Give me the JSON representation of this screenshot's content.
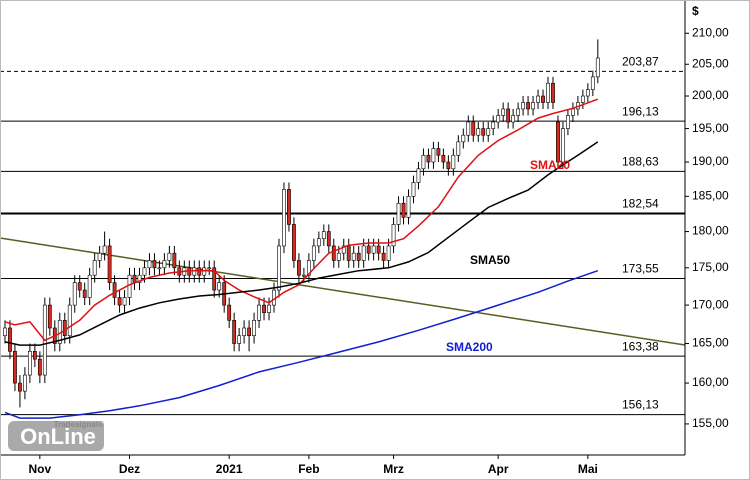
{
  "chart_data": {
    "type": "candlestick",
    "ylabel": "$",
    "log": true,
    "ylim": [
      151.3,
      215.5
    ],
    "yticks": [
      {
        "value": 155,
        "label": "155,00"
      },
      {
        "value": 160,
        "label": "160,00"
      },
      {
        "value": 165,
        "label": "165,00"
      },
      {
        "value": 170,
        "label": "170,00"
      },
      {
        "value": 175,
        "label": "175,00"
      },
      {
        "value": 180,
        "label": "180,00"
      },
      {
        "value": 185,
        "label": "185,00"
      },
      {
        "value": 190,
        "label": "190,00"
      },
      {
        "value": 195,
        "label": "195,00"
      },
      {
        "value": 200,
        "label": "200,00"
      },
      {
        "value": 205,
        "label": "205,00"
      },
      {
        "value": 210,
        "label": "210,00"
      }
    ],
    "xlim": [
      -1,
      136.5
    ],
    "xticks": [
      {
        "value": 7,
        "label": "Nov"
      },
      {
        "value": 25,
        "label": "Dez"
      },
      {
        "value": 45,
        "label": "2021"
      },
      {
        "value": 61,
        "label": "Feb"
      },
      {
        "value": 78,
        "label": "Mrz"
      },
      {
        "value": 99,
        "label": "Apr"
      },
      {
        "value": 117,
        "label": "Mai"
      }
    ],
    "up_color": "#ffffff",
    "down_color": "#d42a20",
    "open": [
      166,
      167,
      164,
      160,
      159,
      161,
      164,
      163,
      161,
      170,
      167,
      165,
      168,
      166,
      170,
      173,
      172,
      171,
      174,
      176,
      177,
      178,
      173,
      171,
      170,
      171,
      174,
      173,
      174,
      175,
      176,
      175,
      175,
      176,
      177,
      175,
      174,
      175,
      174,
      175,
      174,
      175,
      175,
      172,
      173,
      170,
      168,
      165,
      166,
      167,
      166,
      168,
      170,
      169,
      170,
      172,
      178,
      186,
      181,
      176,
      174,
      174,
      176,
      178,
      179,
      180,
      178,
      176,
      177,
      178,
      176,
      177,
      176,
      178,
      177,
      178,
      177,
      176,
      178,
      181,
      184,
      182,
      185,
      187,
      189,
      191,
      190,
      192,
      191,
      190,
      189,
      191,
      193,
      194,
      196,
      194,
      195,
      194,
      195,
      196,
      197,
      198,
      196,
      197,
      198,
      199,
      198,
      199,
      200,
      199,
      202,
      196,
      190,
      195,
      197,
      198,
      199,
      200,
      201,
      203
    ],
    "high": [
      168,
      168,
      165,
      161,
      162,
      165,
      165,
      164,
      171,
      171,
      168,
      169,
      169,
      171,
      174,
      174,
      173,
      175,
      177,
      178,
      180,
      179,
      174,
      172,
      172,
      175,
      175,
      175,
      176,
      177,
      177,
      176,
      177,
      178,
      178,
      176,
      176,
      176,
      176,
      176,
      176,
      176,
      176,
      174,
      174,
      171,
      169,
      167,
      168,
      168,
      169,
      171,
      171,
      171,
      173,
      179,
      187,
      187,
      182,
      177,
      175,
      177,
      179,
      180,
      181,
      181,
      179,
      178,
      179,
      179,
      178,
      178,
      179,
      179,
      179,
      179,
      178,
      179,
      182,
      185,
      185,
      186,
      188,
      190,
      192,
      192,
      193,
      193,
      192,
      191,
      192,
      194,
      195,
      197,
      197,
      196,
      196,
      196,
      197,
      198,
      199,
      199,
      198,
      199,
      200,
      200,
      200,
      201,
      201,
      203,
      203,
      197,
      196,
      198,
      199,
      200,
      201,
      202,
      204,
      209
    ],
    "low": [
      165,
      163,
      159,
      157,
      158,
      160,
      162,
      160,
      160,
      166,
      164,
      164,
      165,
      165,
      169,
      171,
      170,
      170,
      173,
      175,
      176,
      172,
      170,
      169,
      169,
      170,
      172,
      172,
      173,
      174,
      174,
      174,
      174,
      175,
      174,
      173,
      173,
      173,
      173,
      173,
      173,
      174,
      171,
      171,
      169,
      167,
      164,
      164,
      165,
      164,
      165,
      167,
      168,
      168,
      169,
      171,
      177,
      180,
      175,
      173,
      173,
      173,
      175,
      177,
      178,
      177,
      175,
      175,
      176,
      175,
      175,
      175,
      175,
      176,
      176,
      176,
      175,
      175,
      177,
      180,
      181,
      181,
      184,
      186,
      188,
      189,
      189,
      190,
      189,
      188,
      188,
      190,
      192,
      193,
      193,
      193,
      193,
      193,
      194,
      195,
      196,
      195,
      195,
      196,
      197,
      197,
      197,
      198,
      198,
      198,
      198,
      189,
      189,
      194,
      196,
      197,
      198,
      199,
      200,
      202
    ],
    "close": [
      167,
      164,
      160,
      159,
      161,
      164,
      163,
      161,
      170,
      167,
      165,
      168,
      166,
      170,
      173,
      172,
      171,
      174,
      176,
      177,
      178,
      173,
      171,
      170,
      171,
      174,
      173,
      174,
      175,
      176,
      175,
      175,
      176,
      177,
      175,
      174,
      175,
      174,
      175,
      174,
      175,
      175,
      172,
      173,
      170,
      168,
      165,
      166,
      167,
      166,
      168,
      170,
      169,
      170,
      172,
      178,
      186,
      181,
      176,
      174,
      174,
      176,
      178,
      179,
      180,
      178,
      176,
      177,
      178,
      176,
      177,
      176,
      178,
      177,
      178,
      177,
      176,
      178,
      181,
      184,
      182,
      185,
      187,
      189,
      191,
      190,
      192,
      191,
      190,
      189,
      191,
      193,
      194,
      196,
      194,
      195,
      194,
      195,
      196,
      197,
      198,
      196,
      197,
      198,
      199,
      198,
      199,
      200,
      199,
      202,
      199,
      190,
      195,
      197,
      198,
      199,
      200,
      201,
      203,
      206
    ],
    "series": [
      {
        "name": "SMA20",
        "color": "#e01010",
        "x": [
          0,
          2,
          5,
          8,
          11,
          15,
          18,
          21,
          25,
          29,
          33,
          37,
          42,
          44,
          47,
          50,
          53,
          56,
          59,
          62,
          65,
          69,
          73,
          77,
          80,
          83,
          87,
          91,
          95,
          99,
          103,
          107,
          110,
          114,
          119
        ],
        "values": [
          167.8,
          167.4,
          167.8,
          165.4,
          166.3,
          168.0,
          170.0,
          171.3,
          172.7,
          173.7,
          174.3,
          174.6,
          174.6,
          173.3,
          172.0,
          171.1,
          170.3,
          171.7,
          172.7,
          174.9,
          177.0,
          178.1,
          178.4,
          178.4,
          179.0,
          180.8,
          183.5,
          187.8,
          191.0,
          193.2,
          194.8,
          196.6,
          197.3,
          198.1,
          199.5
        ]
      },
      {
        "name": "SMA50",
        "color": "#000000",
        "x": [
          0,
          3,
          7,
          11,
          15,
          19,
          23,
          27,
          31,
          35,
          39,
          43,
          47,
          51,
          55,
          59,
          63,
          67,
          71,
          77,
          81,
          85,
          89,
          93,
          97,
          101,
          105,
          109,
          111,
          115,
          119
        ],
        "values": [
          165.2,
          164.8,
          164.8,
          165.4,
          166.1,
          167.4,
          168.7,
          169.6,
          170.3,
          170.8,
          171.2,
          171.4,
          171.7,
          172.0,
          172.4,
          172.9,
          173.6,
          174.1,
          174.6,
          175.0,
          175.8,
          177.1,
          179.2,
          181.3,
          183.4,
          184.7,
          185.9,
          188.1,
          189.1,
          191.0,
          193.0
        ]
      },
      {
        "name": "SMA200",
        "color": "#1020d0",
        "x": [
          0,
          3,
          9,
          15,
          21,
          27,
          35,
          43,
          51,
          59,
          67,
          75,
          83,
          91,
          99,
          107,
          113,
          119
        ],
        "values": [
          156.4,
          155.7,
          155.7,
          156.1,
          156.6,
          157.2,
          158.2,
          159.7,
          161.4,
          162.6,
          163.9,
          165.2,
          166.7,
          168.3,
          170.0,
          171.7,
          173.2,
          174.6
        ]
      }
    ],
    "levels": [
      {
        "value": 203.87,
        "label": "203,87",
        "style": "dashed"
      },
      {
        "value": 196.13,
        "label": "196,13",
        "style": "solid"
      },
      {
        "value": 188.63,
        "label": "188,63",
        "style": "solid"
      },
      {
        "value": 182.54,
        "label": "182,54",
        "style": "bold"
      },
      {
        "value": 173.55,
        "label": "173,55",
        "style": "solid"
      },
      {
        "value": 163.38,
        "label": "163,38",
        "style": "solid"
      },
      {
        "value": 156.13,
        "label": "156,13",
        "style": "solid"
      }
    ],
    "trendline": {
      "color": "#5b5b22",
      "x": [
        -1,
        136.5
      ],
      "values": [
        179.1,
        164.8
      ]
    },
    "watermark": {
      "brand": "Tradesignal®",
      "product": "OnLine"
    }
  }
}
